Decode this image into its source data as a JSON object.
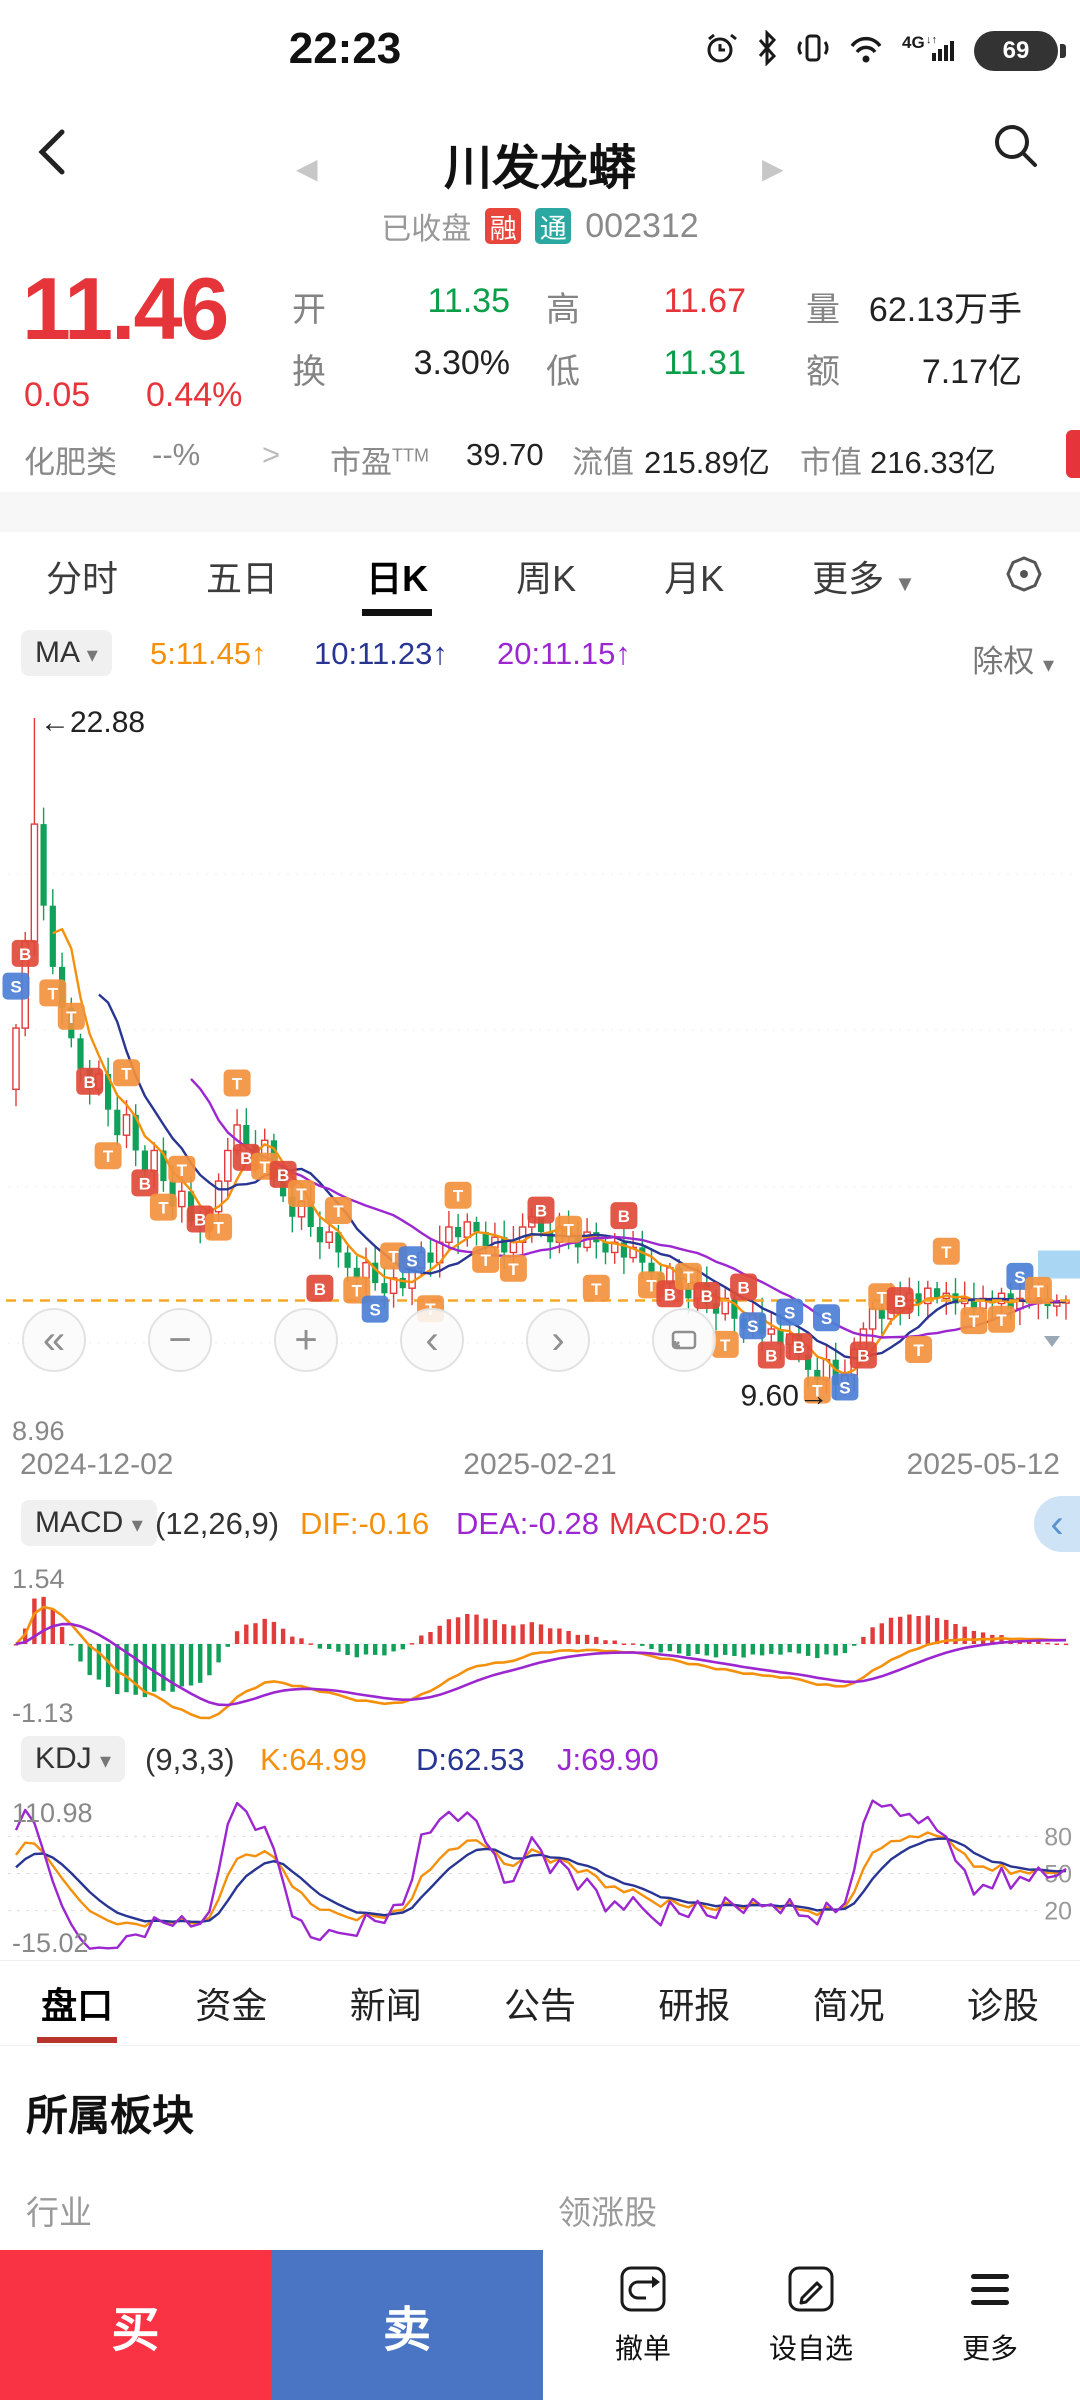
{
  "colors": {
    "price_red": "#e6353a",
    "price_green": "#0a9e48",
    "up_red": "#e23b3b",
    "down_green": "#11a05a",
    "orange": "#f5900c",
    "navy": "#283593",
    "purple": "#9c27d0",
    "marker_b": "#df4a3a",
    "marker_s": "#4d7fd6",
    "marker_t": "#f2913d",
    "dashed_line": "#f5a623",
    "tag_blue": "#a9d7f3",
    "buy": "#fa3344",
    "sell": "#4a74c4",
    "badge_rong": "#e8453c",
    "badge_tong": "#2ba8a2",
    "tab_underline": "#111111",
    "bottom_underline": "#b8352b"
  },
  "status_bar": {
    "time": "22:23",
    "battery_pct": "69",
    "network_label": "4G"
  },
  "header": {
    "title": "川发龙蟒",
    "market_status": "已收盘",
    "badge_margin": "融",
    "badge_connect": "通",
    "stock_code": "002312"
  },
  "quote": {
    "last": "11.46",
    "change": "0.05",
    "change_pct": "0.44%",
    "open_label": "开",
    "open": "11.35",
    "high_label": "高",
    "high": "11.67",
    "vol_label": "量",
    "vol": "62.13万手",
    "turnover_label": "换",
    "turnover": "3.30%",
    "low_label": "低",
    "low": "11.31",
    "amount_label": "额",
    "amount": "7.17亿",
    "sector": "化肥类",
    "sector_chg": "--%",
    "sector_arrow": ">",
    "pe_label": "市盈",
    "pe_sup": "TTM",
    "pe": "39.70",
    "float_label": "流值",
    "float_val": "215.89亿",
    "cap_label": "市值",
    "cap_val": "216.33亿"
  },
  "period_tabs": {
    "items": [
      "分时",
      "五日",
      "日K",
      "周K",
      "月K",
      "更多"
    ],
    "active_index": 2
  },
  "ma_bar": {
    "label": "MA",
    "ma5": "5:11.45↑",
    "ma10": "10:11.23↑",
    "ma20": "20:11.15↑",
    "right": "除权"
  },
  "macd_bar": {
    "label": "MACD",
    "params": "(12,26,9)",
    "dif": "DIF:-0.16",
    "dea": "DEA:-0.28",
    "macd": "MACD:0.25"
  },
  "kdj_bar": {
    "label": "KDJ",
    "params": "(9,3,3)",
    "k": "K:64.99",
    "d": "D:62.53",
    "j": "J:69.90"
  },
  "zoom_controls": {
    "jump_left": "«",
    "zoom_out": "−",
    "zoom_in": "+",
    "pan_left": "‹",
    "pan_right": "›"
  },
  "bottom_tabs": {
    "items": [
      "盘口",
      "资金",
      "新闻",
      "公告",
      "研报",
      "简况",
      "诊股"
    ],
    "active_index": 0
  },
  "section": {
    "title": "所属板块",
    "industry_label": "行业",
    "leader_label": "领涨股"
  },
  "action_bar": {
    "buy": "买",
    "sell": "卖",
    "cancel": "撤单",
    "watch": "设自选",
    "more": "更多"
  },
  "chart_data": {
    "type": "candlestick+indicators",
    "kline": {
      "y_max": 22.88,
      "y_min": 8.96,
      "last_price": 11.46,
      "high_label": "←22.88",
      "low_axis_label": "8.96",
      "low_marker_label": "9.60→",
      "spike_high": {
        "index": 2,
        "value": 22.88
      },
      "spike_low": {
        "index": 90,
        "value": 9.6
      },
      "ma_periods": [
        5,
        10,
        20
      ],
      "dates": [
        "2024-12-02",
        "2025-02-21",
        "2025-05-12"
      ],
      "closes": [
        16.8,
        18.5,
        20.8,
        19.2,
        18.0,
        17.2,
        16.6,
        16.0,
        15.6,
        15.9,
        15.2,
        14.7,
        15.1,
        14.4,
        14.0,
        14.4,
        13.8,
        13.3,
        13.6,
        13.0,
        12.9,
        13.2,
        13.8,
        14.4,
        14.9,
        14.5,
        14.2,
        14.6,
        14.0,
        13.5,
        13.1,
        13.4,
        12.9,
        12.6,
        12.8,
        12.4,
        12.1,
        11.9,
        12.2,
        11.8,
        11.6,
        11.9,
        11.7,
        12.1,
        12.4,
        12.2,
        12.6,
        12.9,
        12.7,
        13.0,
        12.8,
        12.5,
        12.7,
        12.4,
        12.6,
        12.9,
        13.1,
        12.8,
        12.6,
        12.9,
        12.7,
        12.5,
        12.8,
        12.6,
        12.4,
        12.6,
        12.3,
        12.5,
        12.2,
        12.0,
        11.8,
        12.1,
        11.7,
        11.5,
        11.8,
        11.4,
        11.2,
        11.5,
        11.1,
        10.9,
        11.2,
        10.8,
        10.9,
        10.6,
        10.8,
        10.4,
        10.1,
        9.9,
        10.3,
        9.8,
        10.0,
        10.5,
        10.9,
        11.3,
        11.1,
        11.5,
        11.3,
        11.6,
        11.4,
        11.7,
        11.5,
        11.6,
        11.4,
        11.5,
        11.3,
        11.5,
        11.4,
        11.6,
        11.3,
        11.5,
        11.4,
        11.5,
        11.35,
        11.41,
        11.46
      ],
      "markers": [
        [
          0,
          "S"
        ],
        [
          1,
          "B"
        ],
        [
          4,
          "T"
        ],
        [
          6,
          "T"
        ],
        [
          8,
          "B"
        ],
        [
          10,
          "T"
        ],
        [
          12,
          "T"
        ],
        [
          14,
          "B"
        ],
        [
          16,
          "T"
        ],
        [
          18,
          "T"
        ],
        [
          20,
          "B"
        ],
        [
          22,
          "T"
        ],
        [
          24,
          "T"
        ],
        [
          25,
          "B"
        ],
        [
          27,
          "T"
        ],
        [
          29,
          "B"
        ],
        [
          31,
          "T"
        ],
        [
          33,
          "B"
        ],
        [
          35,
          "T"
        ],
        [
          37,
          "T"
        ],
        [
          39,
          "S"
        ],
        [
          41,
          "T"
        ],
        [
          43,
          "S"
        ],
        [
          45,
          "T"
        ],
        [
          48,
          "T"
        ],
        [
          51,
          "T"
        ],
        [
          54,
          "T"
        ],
        [
          57,
          "B"
        ],
        [
          60,
          "T"
        ],
        [
          63,
          "T"
        ],
        [
          66,
          "B"
        ],
        [
          69,
          "T"
        ],
        [
          71,
          "B"
        ],
        [
          73,
          "T"
        ],
        [
          75,
          "B"
        ],
        [
          77,
          "T"
        ],
        [
          79,
          "B"
        ],
        [
          80,
          "S"
        ],
        [
          82,
          "B"
        ],
        [
          84,
          "S"
        ],
        [
          85,
          "B"
        ],
        [
          87,
          "T"
        ],
        [
          88,
          "S"
        ],
        [
          90,
          "S"
        ],
        [
          92,
          "B"
        ],
        [
          94,
          "T"
        ],
        [
          96,
          "B"
        ],
        [
          98,
          "T"
        ],
        [
          101,
          "T"
        ],
        [
          104,
          "T"
        ],
        [
          107,
          "T"
        ],
        [
          109,
          "S"
        ],
        [
          111,
          "T"
        ]
      ]
    },
    "macd": {
      "top_label": "1.54",
      "bottom_label": "-1.13"
    },
    "kdj": {
      "top_label": "110.98",
      "bottom_label": "-15.02",
      "y_max": 110.98,
      "y_min": -15.02,
      "grid": [
        80,
        50,
        20
      ]
    }
  }
}
